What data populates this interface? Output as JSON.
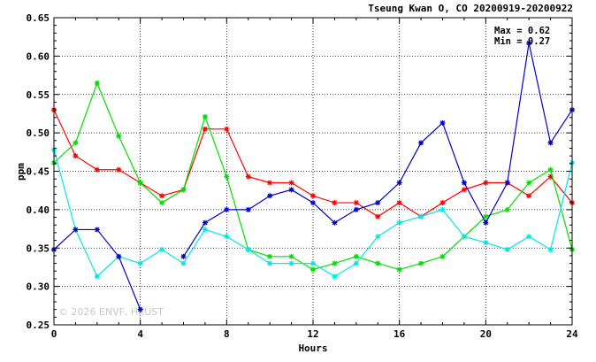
{
  "chart_data": {
    "type": "line",
    "title": "Tseung Kwan O, CO 20200919-20200922",
    "xlabel": "Hours",
    "ylabel": "ppm",
    "xlim": [
      0,
      24
    ],
    "ylim": [
      0.25,
      0.65
    ],
    "xticks": [
      0,
      4,
      8,
      12,
      16,
      20,
      24
    ],
    "xtick_labels": [
      "0",
      "4",
      "8",
      "12",
      "16",
      "20",
      "24"
    ],
    "yticks": [
      0.25,
      0.3,
      0.35,
      0.4,
      0.45,
      0.5,
      0.55,
      0.6,
      0.65
    ],
    "ytick_labels": [
      "0.25",
      "0.30",
      "0.35",
      "0.40",
      "0.45",
      "0.50",
      "0.55",
      "0.60",
      "0.65"
    ],
    "grid": true,
    "annotations": [
      "Max = 0.62",
      "Min = 0.27"
    ],
    "watermark": "© 2026  ENVF, HKUST",
    "x": [
      0,
      1,
      2,
      3,
      4,
      5,
      6,
      7,
      8,
      9,
      10,
      11,
      12,
      13,
      14,
      15,
      16,
      17,
      18,
      19,
      20,
      21,
      22,
      23,
      24
    ],
    "series": [
      {
        "color": "#ff0000",
        "values": [
          0.53,
          0.47,
          0.452,
          0.452,
          0.435,
          0.418,
          0.426,
          0.505,
          0.505,
          0.443,
          0.435,
          0.435,
          0.418,
          0.409,
          0.409,
          0.391,
          0.409,
          0.391,
          0.409,
          0.426,
          0.435,
          0.435,
          0.418,
          0.443,
          0.409
        ]
      },
      {
        "color": "#00e000",
        "values": [
          0.461,
          0.487,
          0.565,
          0.496,
          0.435,
          0.409,
          0.426,
          0.521,
          0.443,
          0.348,
          0.339,
          0.339,
          0.322,
          0.33,
          0.339,
          0.33,
          0.322,
          0.33,
          0.339,
          0.365,
          0.391,
          0.4,
          0.435,
          0.452,
          0.348
        ]
      },
      {
        "color": "#00e8e8",
        "values": [
          0.478,
          0.374,
          0.313,
          0.339,
          0.33,
          0.348,
          0.33,
          0.374,
          0.365,
          0.348,
          0.33,
          0.33,
          0.33,
          0.313,
          0.33,
          0.365,
          0.383,
          0.391,
          0.4,
          0.365,
          0.357,
          0.348,
          0.365,
          0.348,
          0.461
        ]
      },
      {
        "color": "#0000cc",
        "values": [
          0.348,
          0.374,
          0.374,
          0.339,
          0.27,
          null,
          0.339,
          0.383,
          0.4,
          0.4,
          0.418,
          0.426,
          0.409,
          0.383,
          0.4,
          0.409,
          0.435,
          0.487,
          0.513,
          0.435,
          0.383,
          0.435,
          0.617,
          0.487,
          0.53
        ]
      }
    ]
  }
}
